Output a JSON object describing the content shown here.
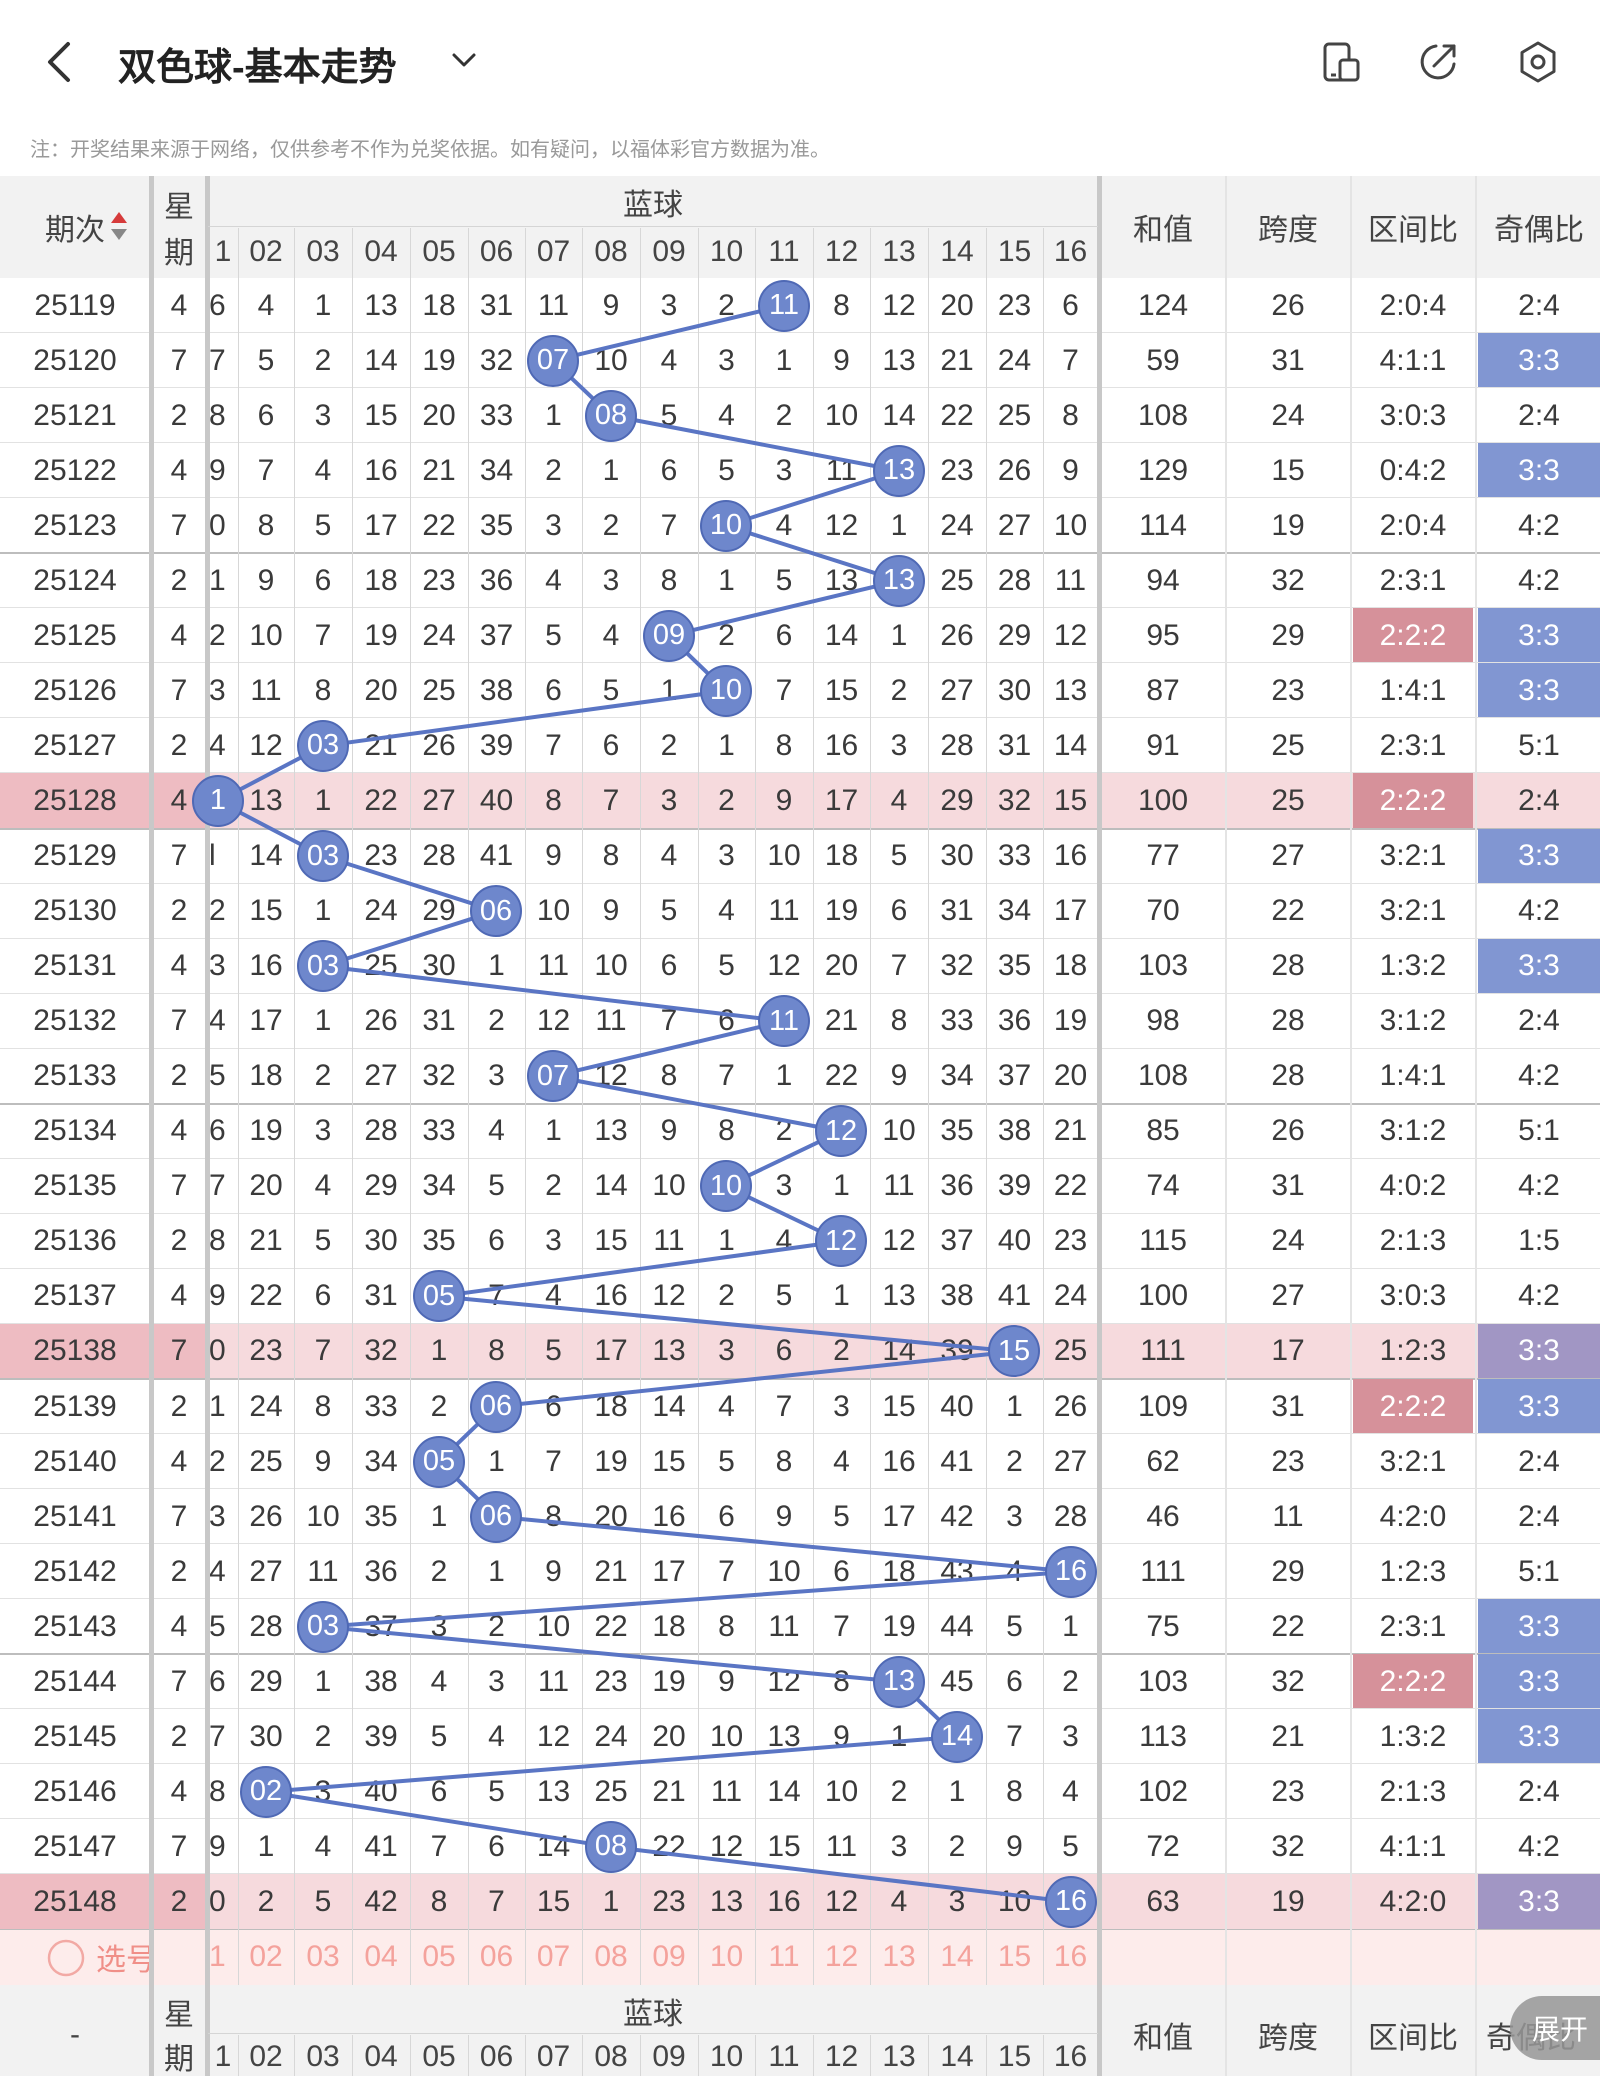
{
  "header": {
    "title": "双色球-基本走势",
    "note": "注：开奖结果来源于网络，仅供参考不作为兑奖依据。如有疑问，以福体彩官方数据为准。",
    "icons": [
      "back-icon",
      "chevron-down-icon",
      "device-icon",
      "share-icon",
      "settings-icon"
    ]
  },
  "table": {
    "h_period": "期次",
    "h_week1": "星",
    "h_week2": "期",
    "h_blue": "蓝球",
    "h_sum": "和值",
    "h_span": "跨度",
    "h_zone": "区间比",
    "h_oddeven": "奇偶比",
    "col_labels": [
      "1",
      "02",
      "03",
      "04",
      "05",
      "06",
      "07",
      "08",
      "09",
      "10",
      "11",
      "12",
      "13",
      "14",
      "15",
      "16"
    ],
    "rows": [
      {
        "p": "25119",
        "w": "4",
        "hit": 11,
        "c": [
          "6",
          "4",
          "1",
          "13",
          "18",
          "31",
          "11",
          "9",
          "3",
          "2",
          "11",
          "8",
          "12",
          "20",
          "23",
          "6"
        ],
        "sum": "124",
        "span": "26",
        "zone": "2:0:4",
        "oe": "2:4"
      },
      {
        "p": "25120",
        "w": "7",
        "hit": 7,
        "c": [
          "7",
          "5",
          "2",
          "14",
          "19",
          "32",
          "07",
          "10",
          "4",
          "3",
          "1",
          "9",
          "13",
          "21",
          "24",
          "7"
        ],
        "sum": "59",
        "span": "31",
        "zone": "4:1:1",
        "oe": "3:3"
      },
      {
        "p": "25121",
        "w": "2",
        "hit": 8,
        "c": [
          "8",
          "6",
          "3",
          "15",
          "20",
          "33",
          "1",
          "08",
          "5",
          "4",
          "2",
          "10",
          "14",
          "22",
          "25",
          "8"
        ],
        "sum": "108",
        "span": "24",
        "zone": "3:0:3",
        "oe": "2:4"
      },
      {
        "p": "25122",
        "w": "4",
        "hit": 13,
        "c": [
          "9",
          "7",
          "4",
          "16",
          "21",
          "34",
          "2",
          "1",
          "6",
          "5",
          "3",
          "11",
          "13",
          "23",
          "26",
          "9"
        ],
        "sum": "129",
        "span": "15",
        "zone": "0:4:2",
        "oe": "3:3"
      },
      {
        "p": "25123",
        "w": "7",
        "hit": 10,
        "c": [
          "0",
          "8",
          "5",
          "17",
          "22",
          "35",
          "3",
          "2",
          "7",
          "10",
          "4",
          "12",
          "1",
          "24",
          "27",
          "10"
        ],
        "sum": "114",
        "span": "19",
        "zone": "2:0:4",
        "oe": "4:2"
      },
      {
        "p": "25124",
        "w": "2",
        "hit": 13,
        "c": [
          "1",
          "9",
          "6",
          "18",
          "23",
          "36",
          "4",
          "3",
          "8",
          "1",
          "5",
          "13",
          "13",
          "25",
          "28",
          "11"
        ],
        "sum": "94",
        "span": "32",
        "zone": "2:3:1",
        "oe": "4:2"
      },
      {
        "p": "25125",
        "w": "4",
        "hit": 9,
        "c": [
          "2",
          "10",
          "7",
          "19",
          "24",
          "37",
          "5",
          "4",
          "09",
          "2",
          "6",
          "14",
          "1",
          "26",
          "29",
          "12"
        ],
        "sum": "95",
        "span": "29",
        "zone": "2:2:2",
        "oe": "3:3"
      },
      {
        "p": "25126",
        "w": "7",
        "hit": 10,
        "c": [
          "3",
          "11",
          "8",
          "20",
          "25",
          "38",
          "6",
          "5",
          "1",
          "10",
          "7",
          "15",
          "2",
          "27",
          "30",
          "13"
        ],
        "sum": "87",
        "span": "23",
        "zone": "1:4:1",
        "oe": "3:3"
      },
      {
        "p": "25127",
        "w": "2",
        "hit": 3,
        "c": [
          "4",
          "12",
          "03",
          "21",
          "26",
          "39",
          "7",
          "6",
          "2",
          "1",
          "8",
          "16",
          "3",
          "28",
          "31",
          "14"
        ],
        "sum": "91",
        "span": "25",
        "zone": "2:3:1",
        "oe": "5:1"
      },
      {
        "p": "25128",
        "w": "4",
        "hit": 1,
        "c": [
          "1",
          "13",
          "1",
          "22",
          "27",
          "40",
          "8",
          "7",
          "3",
          "2",
          "9",
          "17",
          "4",
          "29",
          "32",
          "15"
        ],
        "sum": "100",
        "span": "25",
        "zone": "2:2:2",
        "oe": "2:4"
      },
      {
        "p": "25129",
        "w": "7",
        "hit": 3,
        "c": [
          "l",
          "14",
          "03",
          "23",
          "28",
          "41",
          "9",
          "8",
          "4",
          "3",
          "10",
          "18",
          "5",
          "30",
          "33",
          "16"
        ],
        "sum": "77",
        "span": "27",
        "zone": "3:2:1",
        "oe": "3:3"
      },
      {
        "p": "25130",
        "w": "2",
        "hit": 6,
        "c": [
          "2",
          "15",
          "1",
          "24",
          "29",
          "06",
          "10",
          "9",
          "5",
          "4",
          "11",
          "19",
          "6",
          "31",
          "34",
          "17"
        ],
        "sum": "70",
        "span": "22",
        "zone": "3:2:1",
        "oe": "4:2"
      },
      {
        "p": "25131",
        "w": "4",
        "hit": 3,
        "c": [
          "3",
          "16",
          "03",
          "25",
          "30",
          "1",
          "11",
          "10",
          "6",
          "5",
          "12",
          "20",
          "7",
          "32",
          "35",
          "18"
        ],
        "sum": "103",
        "span": "28",
        "zone": "1:3:2",
        "oe": "3:3"
      },
      {
        "p": "25132",
        "w": "7",
        "hit": 11,
        "c": [
          "4",
          "17",
          "1",
          "26",
          "31",
          "2",
          "12",
          "11",
          "7",
          "6",
          "11",
          "21",
          "8",
          "33",
          "36",
          "19"
        ],
        "sum": "98",
        "span": "28",
        "zone": "3:1:2",
        "oe": "2:4"
      },
      {
        "p": "25133",
        "w": "2",
        "hit": 7,
        "c": [
          "5",
          "18",
          "2",
          "27",
          "32",
          "3",
          "07",
          "12",
          "8",
          "7",
          "1",
          "22",
          "9",
          "34",
          "37",
          "20"
        ],
        "sum": "108",
        "span": "28",
        "zone": "1:4:1",
        "oe": "4:2"
      },
      {
        "p": "25134",
        "w": "4",
        "hit": 12,
        "c": [
          "6",
          "19",
          "3",
          "28",
          "33",
          "4",
          "1",
          "13",
          "9",
          "8",
          "2",
          "12",
          "10",
          "35",
          "38",
          "21"
        ],
        "sum": "85",
        "span": "26",
        "zone": "3:1:2",
        "oe": "5:1"
      },
      {
        "p": "25135",
        "w": "7",
        "hit": 10,
        "c": [
          "7",
          "20",
          "4",
          "29",
          "34",
          "5",
          "2",
          "14",
          "10",
          "10",
          "3",
          "1",
          "11",
          "36",
          "39",
          "22"
        ],
        "sum": "74",
        "span": "31",
        "zone": "4:0:2",
        "oe": "4:2"
      },
      {
        "p": "25136",
        "w": "2",
        "hit": 12,
        "c": [
          "8",
          "21",
          "5",
          "30",
          "35",
          "6",
          "3",
          "15",
          "11",
          "1",
          "4",
          "12",
          "12",
          "37",
          "40",
          "23"
        ],
        "sum": "115",
        "span": "24",
        "zone": "2:1:3",
        "oe": "1:5"
      },
      {
        "p": "25137",
        "w": "4",
        "hit": 5,
        "c": [
          "9",
          "22",
          "6",
          "31",
          "05",
          "7",
          "4",
          "16",
          "12",
          "2",
          "5",
          "1",
          "13",
          "38",
          "41",
          "24"
        ],
        "sum": "100",
        "span": "27",
        "zone": "3:0:3",
        "oe": "4:2"
      },
      {
        "p": "25138",
        "w": "7",
        "hit": 15,
        "c": [
          "0",
          "23",
          "7",
          "32",
          "1",
          "8",
          "5",
          "17",
          "13",
          "3",
          "6",
          "2",
          "14",
          "39",
          "15",
          "25"
        ],
        "sum": "111",
        "span": "17",
        "zone": "1:2:3",
        "oe": "3:3"
      },
      {
        "p": "25139",
        "w": "2",
        "hit": 6,
        "c": [
          "1",
          "24",
          "8",
          "33",
          "2",
          "06",
          "6",
          "18",
          "14",
          "4",
          "7",
          "3",
          "15",
          "40",
          "1",
          "26"
        ],
        "sum": "109",
        "span": "31",
        "zone": "2:2:2",
        "oe": "3:3"
      },
      {
        "p": "25140",
        "w": "4",
        "hit": 5,
        "c": [
          "2",
          "25",
          "9",
          "34",
          "05",
          "1",
          "7",
          "19",
          "15",
          "5",
          "8",
          "4",
          "16",
          "41",
          "2",
          "27"
        ],
        "sum": "62",
        "span": "23",
        "zone": "3:2:1",
        "oe": "2:4"
      },
      {
        "p": "25141",
        "w": "7",
        "hit": 6,
        "c": [
          "3",
          "26",
          "10",
          "35",
          "1",
          "06",
          "8",
          "20",
          "16",
          "6",
          "9",
          "5",
          "17",
          "42",
          "3",
          "28"
        ],
        "sum": "46",
        "span": "11",
        "zone": "4:2:0",
        "oe": "2:4"
      },
      {
        "p": "25142",
        "w": "2",
        "hit": 16,
        "c": [
          "4",
          "27",
          "11",
          "36",
          "2",
          "1",
          "9",
          "21",
          "17",
          "7",
          "10",
          "6",
          "18",
          "43",
          "4",
          "16"
        ],
        "sum": "111",
        "span": "29",
        "zone": "1:2:3",
        "oe": "5:1"
      },
      {
        "p": "25143",
        "w": "4",
        "hit": 3,
        "c": [
          "5",
          "28",
          "03",
          "37",
          "3",
          "2",
          "10",
          "22",
          "18",
          "8",
          "11",
          "7",
          "19",
          "44",
          "5",
          "1"
        ],
        "sum": "75",
        "span": "22",
        "zone": "2:3:1",
        "oe": "3:3"
      },
      {
        "p": "25144",
        "w": "7",
        "hit": 13,
        "c": [
          "6",
          "29",
          "1",
          "38",
          "4",
          "3",
          "11",
          "23",
          "19",
          "9",
          "12",
          "8",
          "13",
          "45",
          "6",
          "2"
        ],
        "sum": "103",
        "span": "32",
        "zone": "2:2:2",
        "oe": "3:3"
      },
      {
        "p": "25145",
        "w": "2",
        "hit": 14,
        "c": [
          "7",
          "30",
          "2",
          "39",
          "5",
          "4",
          "12",
          "24",
          "20",
          "10",
          "13",
          "9",
          "1",
          "14",
          "7",
          "3"
        ],
        "sum": "113",
        "span": "21",
        "zone": "1:3:2",
        "oe": "3:3"
      },
      {
        "p": "25146",
        "w": "4",
        "hit": 2,
        "c": [
          "8",
          "02",
          "3",
          "40",
          "6",
          "5",
          "13",
          "25",
          "21",
          "11",
          "14",
          "10",
          "2",
          "1",
          "8",
          "4"
        ],
        "sum": "102",
        "span": "23",
        "zone": "2:1:3",
        "oe": "2:4"
      },
      {
        "p": "25147",
        "w": "7",
        "hit": 8,
        "c": [
          "9",
          "1",
          "4",
          "41",
          "7",
          "6",
          "14",
          "08",
          "22",
          "12",
          "15",
          "11",
          "3",
          "2",
          "9",
          "5"
        ],
        "sum": "72",
        "span": "32",
        "zone": "4:1:1",
        "oe": "4:2"
      },
      {
        "p": "25148",
        "w": "2",
        "hit": 16,
        "c": [
          "0",
          "2",
          "5",
          "42",
          "8",
          "7",
          "15",
          "1",
          "23",
          "13",
          "16",
          "12",
          "4",
          "3",
          "10",
          "16"
        ],
        "sum": "63",
        "span": "19",
        "zone": "4:2:0",
        "oe": "3:3"
      }
    ],
    "highlight_rows": [
      9,
      19,
      29
    ],
    "oe_blue": [
      1,
      3,
      6,
      7,
      10,
      12,
      20,
      24,
      25,
      26
    ],
    "oe_purple": [
      19,
      29
    ],
    "zone_red": [
      6,
      9,
      20,
      25
    ],
    "select_label": "选号",
    "select_nums": [
      "1",
      "02",
      "03",
      "04",
      "05",
      "06",
      "07",
      "08",
      "09",
      "10",
      "11",
      "12",
      "13",
      "14",
      "15",
      "16"
    ],
    "footer_period": "-",
    "expand_label": "展开"
  }
}
